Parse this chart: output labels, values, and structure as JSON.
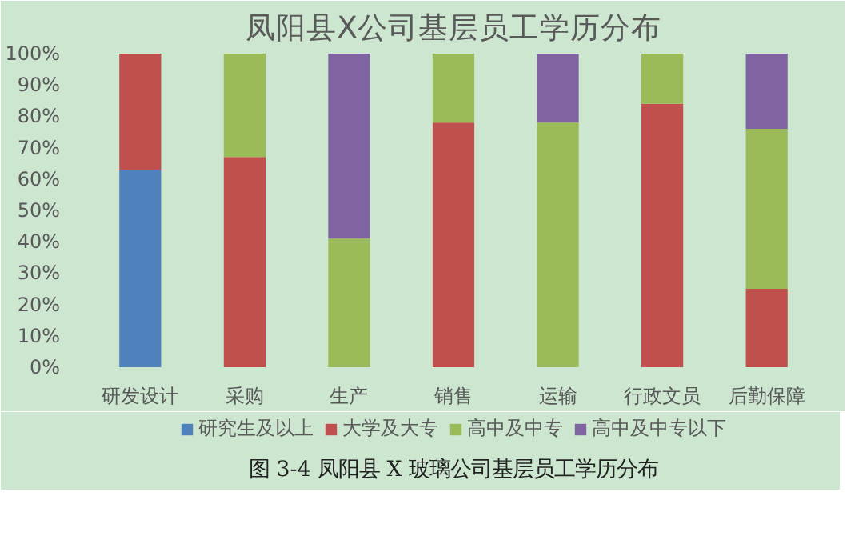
{
  "chart_data": {
    "type": "bar",
    "stacked": true,
    "title": "凤阳县X公司基层员工学历分布",
    "categories": [
      "研发设计",
      "采购",
      "生产",
      "销售",
      "运输",
      "行政文员",
      "后勤保障"
    ],
    "series": [
      {
        "name": "研究生及以上",
        "color": "#4f81bd",
        "values": [
          63,
          0,
          0,
          0,
          0,
          0,
          0
        ]
      },
      {
        "name": "大学及大专",
        "color": "#c0504d",
        "values": [
          37,
          67,
          0,
          78,
          0,
          84,
          25
        ]
      },
      {
        "name": "高中及中专",
        "color": "#9bbb59",
        "values": [
          0,
          33,
          41,
          22,
          78,
          16,
          51
        ]
      },
      {
        "name": "高中及中专以下",
        "color": "#8064a2",
        "values": [
          0,
          0,
          59,
          0,
          22,
          0,
          24
        ]
      }
    ],
    "ylim": [
      0,
      100
    ],
    "yticks": [
      {
        "value": 0,
        "label": "0%"
      },
      {
        "value": 10,
        "label": "10%"
      },
      {
        "value": 20,
        "label": "20%"
      },
      {
        "value": 30,
        "label": "30%"
      },
      {
        "value": 40,
        "label": "40%"
      },
      {
        "value": 50,
        "label": "50%"
      },
      {
        "value": 60,
        "label": "60%"
      },
      {
        "value": 70,
        "label": "70%"
      },
      {
        "value": 80,
        "label": "80%"
      },
      {
        "value": 90,
        "label": "90%"
      },
      {
        "value": 100,
        "label": "100%"
      }
    ],
    "grid": false,
    "legend": "bottom",
    "annotations": [
      "图 3-4 凤阳县 X 玻璃公司基层员工学历分布"
    ]
  }
}
